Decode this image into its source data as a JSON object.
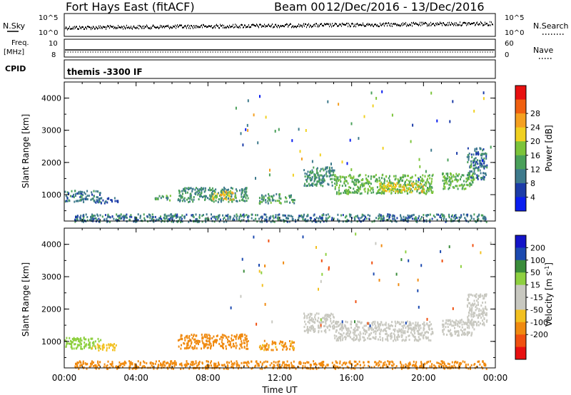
{
  "header": {
    "station": "Fort Hays East (fitACF)",
    "beam": "Beam 00",
    "dates": "12/Dec/2016 - 13/Dec/2016"
  },
  "aux_panels": {
    "nsky_label": "N.Sky",
    "nsearch_label": "N.Search",
    "freq_label_1": "Freq.",
    "freq_label_2": "[MHz]",
    "nave_label": "Nave",
    "cpid_label": "CPID",
    "cpid_value": "themis -3300 IF",
    "noise_ticks_left": [
      "10^5",
      "10^0"
    ],
    "noise_ticks_right": [
      "10^5",
      "10^0"
    ],
    "freq_ticks": [
      "10",
      "8"
    ],
    "nave_ticks": [
      "60",
      "0"
    ]
  },
  "colors": {
    "power_scale": [
      "#0a1ef0",
      "#1c3ca8",
      "#3e7a8c",
      "#4aa05a",
      "#7cc43a",
      "#f0d020",
      "#f5a020",
      "#f06010",
      "#e81010"
    ],
    "velocity_scale": [
      "#e81010",
      "#f05010",
      "#f08a10",
      "#f2c020",
      "#c8c8c0",
      "#c8c8c0",
      "#8ed040",
      "#3a8c3a",
      "#1c4ab0",
      "#1414c8"
    ]
  },
  "chart_data": [
    {
      "type": "heatmap",
      "name": "power",
      "ylabel": "Slant Range [km]",
      "xlabel": "",
      "yticks": [
        "1000",
        "2000",
        "3000",
        "4000"
      ],
      "xticks": [],
      "colorbar_label": "Power [dB]",
      "colorbar_ticks": [
        "4",
        "8",
        "12",
        "16",
        "20",
        "24",
        "28"
      ],
      "x_range_hours": [
        0,
        24
      ],
      "y_range_km": [
        180,
        4500
      ],
      "regions": [
        {
          "t0": 0.0,
          "t1": 2.0,
          "r0": 800,
          "r1": 1150,
          "value": 10
        },
        {
          "t0": 1.5,
          "t1": 3.0,
          "r0": 750,
          "r1": 950,
          "value": 8
        },
        {
          "t0": 5.0,
          "t1": 6.0,
          "r0": 850,
          "r1": 1000,
          "value": 14
        },
        {
          "t0": 6.3,
          "t1": 10.2,
          "r0": 800,
          "r1": 1250,
          "value": 12
        },
        {
          "t0": 8.2,
          "t1": 9.5,
          "r0": 850,
          "r1": 1150,
          "value": 22
        },
        {
          "t0": 10.8,
          "t1": 12.8,
          "r0": 750,
          "r1": 1050,
          "value": 14
        },
        {
          "t0": 13.3,
          "t1": 15.0,
          "r0": 1300,
          "r1": 1900,
          "value": 12
        },
        {
          "t0": 15.0,
          "t1": 20.5,
          "r0": 1050,
          "r1": 1650,
          "value": 16
        },
        {
          "t0": 17.5,
          "t1": 20.0,
          "r0": 1100,
          "r1": 1400,
          "value": 22
        },
        {
          "t0": 21.0,
          "t1": 22.8,
          "r0": 1200,
          "r1": 1700,
          "value": 16
        },
        {
          "t0": 22.4,
          "t1": 23.5,
          "r0": 1500,
          "r1": 2500,
          "value": 10
        },
        {
          "t0": 0.5,
          "t1": 23.5,
          "r0": 180,
          "r1": 420,
          "value": 10
        }
      ]
    },
    {
      "type": "heatmap",
      "name": "velocity",
      "ylabel": "Slant Range [km]",
      "xlabel": "Time UT",
      "yticks": [
        "1000",
        "2000",
        "3000",
        "4000"
      ],
      "xticks": [
        "00:00",
        "04:00",
        "08:00",
        "12:00",
        "16:00",
        "20:00",
        "00:00"
      ],
      "colorbar_label": "Velocity [m s^-1]",
      "colorbar_ticks": [
        "200",
        "100",
        "50",
        "15",
        "-15",
        "-50",
        "-100",
        "-200"
      ],
      "x_range_hours": [
        0,
        24
      ],
      "y_range_km": [
        180,
        4500
      ],
      "regions": [
        {
          "t0": 0.0,
          "t1": 2.0,
          "r0": 800,
          "r1": 1150,
          "value": 40
        },
        {
          "t0": 1.5,
          "t1": 3.0,
          "r0": 750,
          "r1": 950,
          "value": -40
        },
        {
          "t0": 6.3,
          "t1": 10.2,
          "r0": 800,
          "r1": 1250,
          "value": -60
        },
        {
          "t0": 10.8,
          "t1": 12.8,
          "r0": 750,
          "r1": 1050,
          "value": -55
        },
        {
          "t0": 13.3,
          "t1": 15.0,
          "r0": 1300,
          "r1": 1900,
          "value": 0
        },
        {
          "t0": 15.0,
          "t1": 20.5,
          "r0": 1050,
          "r1": 1650,
          "value": 0
        },
        {
          "t0": 21.0,
          "t1": 22.8,
          "r0": 1200,
          "r1": 1700,
          "value": 0
        },
        {
          "t0": 22.4,
          "t1": 23.5,
          "r0": 1500,
          "r1": 2500,
          "value": 0
        },
        {
          "t0": 0.5,
          "t1": 23.5,
          "r0": 180,
          "r1": 420,
          "value": -60
        }
      ]
    }
  ]
}
